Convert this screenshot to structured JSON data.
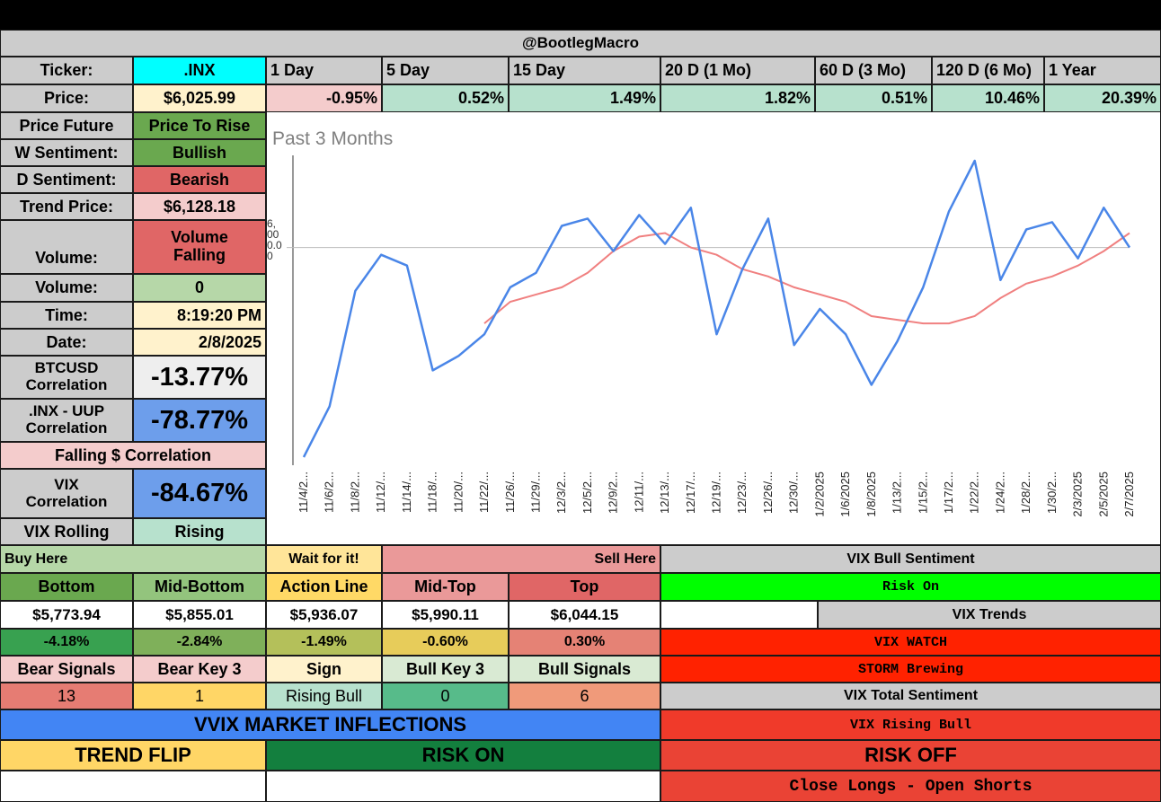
{
  "header": {
    "title": "@BootlegMacro"
  },
  "colors": {
    "gray": "#cccccc",
    "cyan": "#00ffff",
    "lightyellow": "#fff2cc",
    "lightgreen": "#b6d7a8",
    "mint": "#b7e1cd",
    "pink": "#f4cccc",
    "red": "#e06666",
    "green": "#6aa84f",
    "blue": "#6d9eeb",
    "brightgreen": "#00ff00",
    "brightred": "#ff1f00"
  },
  "ticker": {
    "label": "Ticker:",
    "value": ".INX"
  },
  "periods": [
    "1 Day",
    "5 Day",
    "15 Day",
    "20 D (1 Mo)",
    "60 D (3 Mo)",
    "120 D (6 Mo)",
    "1 Year"
  ],
  "price": {
    "label": "Price:",
    "value": "$6,025.99"
  },
  "changes": [
    "-0.95%",
    "0.52%",
    "1.49%",
    "1.82%",
    "0.51%",
    "10.46%",
    "20.39%"
  ],
  "left": {
    "price_future_label": "Price Future",
    "price_future_value": "Price To Rise",
    "w_sentiment_label": "W Sentiment:",
    "w_sentiment_value": "Bullish",
    "d_sentiment_label": "D Sentiment:",
    "d_sentiment_value": "Bearish",
    "trend_price_label": "Trend Price:",
    "trend_price_value": "$6,128.18",
    "volume_label": "Volume:",
    "volume_value": "Volume Falling",
    "volume2_label": "Volume:",
    "volume2_value": "0",
    "time_label": "Time:",
    "time_value": "8:19:20 PM",
    "date_label": "Date:",
    "date_value": "2/8/2025",
    "btc_label": "BTCUSD Correlation",
    "btc_value": "-13.77%",
    "uup_label": ".INX - UUP Correlation",
    "uup_value": "-78.77%",
    "falling_label": "Falling $ Correlation",
    "vix_corr_label": "VIX Correlation",
    "vix_corr_value": "-84.67%",
    "vix_rolling_label": "VIX Rolling",
    "vix_rolling_value": "Rising"
  },
  "chart_data": {
    "type": "line",
    "title": "Past 3 Months",
    "x": [
      "11/4/2...",
      "11/6/2...",
      "11/8/2...",
      "11/12/...",
      "11/14/...",
      "11/18/...",
      "11/20/...",
      "11/22/...",
      "11/26/...",
      "11/29/...",
      "12/3/2...",
      "12/5/2...",
      "12/9/2...",
      "12/11/...",
      "12/13/...",
      "12/17/...",
      "12/19/...",
      "12/23/...",
      "12/26/...",
      "12/30/...",
      "1/2/2025",
      "1/6/2025",
      "1/8/2025",
      "1/13/2...",
      "1/15/2...",
      "1/17/2...",
      "1/22/2...",
      "1/24/2...",
      "1/28/2...",
      "1/30/2...",
      "2/3/2025",
      "2/5/2025",
      "2/7/2025"
    ],
    "y_tick_labels": [
      "6,",
      "00",
      "0.0",
      "0"
    ],
    "series": [
      {
        "name": "Price",
        "color": "#4a86e8",
        "values": [
          5710,
          5780,
          5940,
          5990,
          5975,
          5830,
          5850,
          5880,
          5945,
          5965,
          6030,
          6040,
          5995,
          6045,
          6005,
          6055,
          5880,
          5970,
          6040,
          5865,
          5915,
          5880,
          5810,
          5870,
          5945,
          6050,
          6120,
          5955,
          6025,
          6035,
          5985,
          6055,
          6000
        ]
      },
      {
        "name": "Trend",
        "color": "#f08080",
        "values": [
          null,
          null,
          null,
          null,
          null,
          null,
          null,
          5895,
          5925,
          5935,
          5945,
          5965,
          5995,
          6015,
          6020,
          6000,
          5990,
          5970,
          5960,
          5945,
          5935,
          5925,
          5905,
          5900,
          5895,
          5895,
          5905,
          5930,
          5950,
          5960,
          5975,
          5995,
          6020
        ]
      }
    ],
    "ylim": [
      5700,
      6130
    ],
    "reference_line": 6000
  },
  "levels": {
    "buy_here": "Buy Here",
    "wait": "Wait for it!",
    "sell_here": "Sell Here",
    "headers": [
      "Bottom",
      "Mid-Bottom",
      "Action Line",
      "Mid-Top",
      "Top"
    ],
    "values": [
      "$5,773.94",
      "$5,855.01",
      "$5,936.07",
      "$5,990.11",
      "$6,044.15"
    ],
    "pcts": [
      "-4.18%",
      "-2.84%",
      "-1.49%",
      "-0.60%",
      "0.30%"
    ],
    "signal_headers": [
      "Bear Signals",
      "Bear Key 3",
      "Sign",
      "Bull Key 3",
      "Bull Signals"
    ],
    "signal_values": [
      "13",
      "1",
      "Rising Bull",
      "0",
      "6"
    ]
  },
  "vix": {
    "bull_sentiment_label": "VIX Bull Sentiment",
    "risk_on": "Risk On",
    "trends_label": "VIX Trends",
    "watch": "VIX WATCH",
    "storm": "STORM Brewing",
    "total_label": "VIX Total Sentiment",
    "rising_bull": "VIX Rising Bull",
    "risk_off": "RISK OFF",
    "close_longs": "Close Longs - Open Shorts"
  },
  "vvix": {
    "title": "VVIX MARKET INFLECTIONS",
    "trend_flip": "TREND FLIP",
    "risk_on": "RISK ON"
  }
}
